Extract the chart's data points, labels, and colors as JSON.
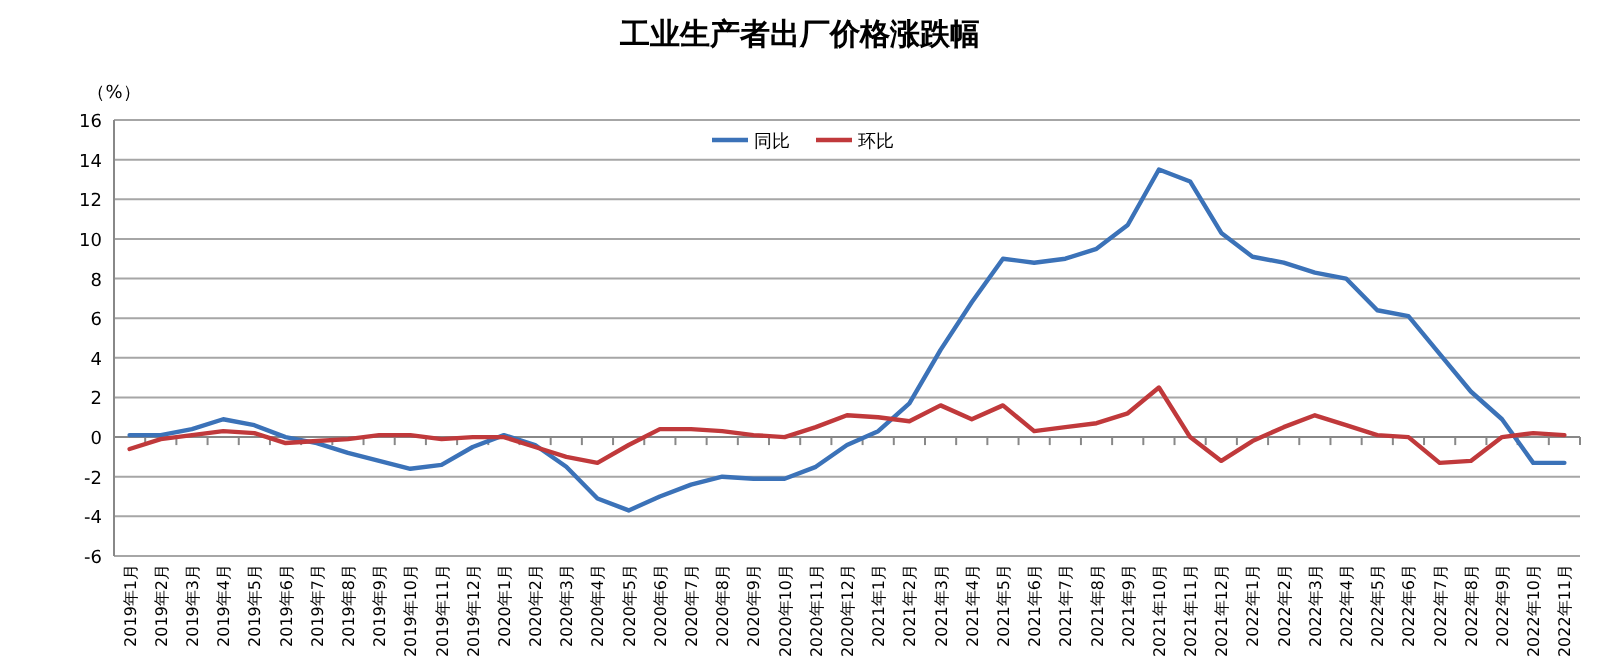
{
  "chart_data": {
    "type": "line",
    "title": "工业生产者出厂价格涨跌幅",
    "ylabel": "（%）",
    "categories": [
      "2019年1月",
      "2019年2月",
      "2019年3月",
      "2019年4月",
      "2019年5月",
      "2019年6月",
      "2019年7月",
      "2019年8月",
      "2019年9月",
      "2019年10月",
      "2019年11月",
      "2019年12月",
      "2020年1月",
      "2020年2月",
      "2020年3月",
      "2020年4月",
      "2020年5月",
      "2020年6月",
      "2020年7月",
      "2020年8月",
      "2020年9月",
      "2020年10月",
      "2020年11月",
      "2020年12月",
      "2021年1月",
      "2021年2月",
      "2021年3月",
      "2021年4月",
      "2021年5月",
      "2021年6月",
      "2021年7月",
      "2021年8月",
      "2021年9月",
      "2021年10月",
      "2021年11月",
      "2021年12月",
      "2022年1月",
      "2022年2月",
      "2022年3月",
      "2022年4月",
      "2022年5月",
      "2022年6月",
      "2022年7月",
      "2022年8月",
      "2022年9月",
      "2022年10月",
      "2022年11月"
    ],
    "series": [
      {
        "name": "同比",
        "color": "#3b72b8",
        "values": [
          0.1,
          0.1,
          0.4,
          0.9,
          0.6,
          0.0,
          -0.3,
          -0.8,
          -1.2,
          -1.6,
          -1.4,
          -0.5,
          0.1,
          -0.4,
          -1.5,
          -3.1,
          -3.7,
          -3.0,
          -2.4,
          -2.0,
          -2.1,
          -2.1,
          -1.5,
          -0.4,
          0.3,
          1.7,
          4.4,
          6.8,
          9.0,
          8.8,
          9.0,
          9.5,
          10.7,
          13.5,
          12.9,
          10.3,
          9.1,
          8.8,
          8.3,
          8.0,
          6.4,
          6.1,
          4.2,
          2.3,
          0.9,
          -1.3,
          -1.3
        ]
      },
      {
        "name": "环比",
        "color": "#c0393b",
        "values": [
          -0.6,
          -0.1,
          0.1,
          0.3,
          0.2,
          -0.3,
          -0.2,
          -0.1,
          0.1,
          0.1,
          -0.1,
          0.0,
          0.0,
          -0.5,
          -1.0,
          -1.3,
          -0.4,
          0.4,
          0.4,
          0.3,
          0.1,
          0.0,
          0.5,
          1.1,
          1.0,
          0.8,
          1.6,
          0.9,
          1.6,
          0.3,
          0.5,
          0.7,
          1.2,
          2.5,
          0.0,
          -1.2,
          -0.2,
          0.5,
          1.1,
          0.6,
          0.1,
          0.0,
          -1.3,
          -1.2,
          0.0,
          0.2,
          0.1
        ]
      }
    ],
    "ylim": [
      -6,
      16
    ],
    "yticks": [
      -6,
      -4,
      -2,
      0,
      2,
      4,
      6,
      8,
      10,
      12,
      14,
      16
    ],
    "grid": "y",
    "legend": "top",
    "marker": "none",
    "line_style": "solid"
  }
}
